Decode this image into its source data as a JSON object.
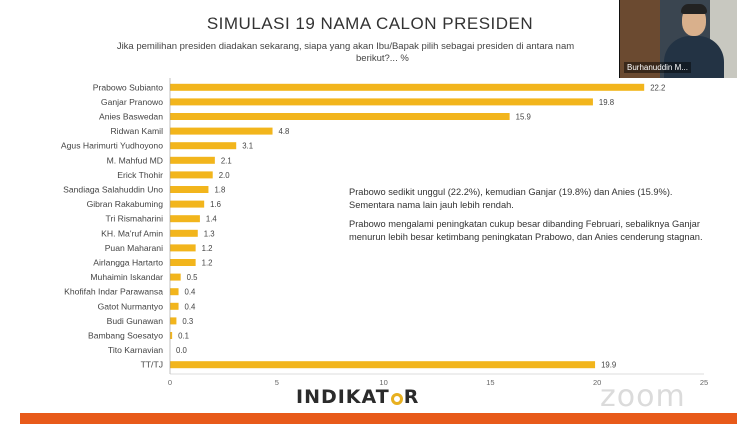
{
  "slide": {
    "title": "SIMULASI 19 NAMA CALON PRESIDEN",
    "subtitle_line1": "Jika pemilihan presiden diadakan sekarang, siapa yang akan Ibu/Bapak pilih sebagai presiden di antara nam",
    "subtitle_line2": "berikut?... %",
    "note_1": "Prabowo sedikit unggul (22.2%), kemudian Ganjar (19.8%) dan Anies (15.9%). Sementara nama lain jauh lebih rendah.",
    "note_2": "Prabowo mengalami peningkatan cukup besar dibanding Februari, sebaliknya Ganjar menurun lebih besar ketimbang peningkatan Prabowo, dan Anies cenderung stagnan.",
    "logo_pre": "INDIKAT",
    "logo_post": "R",
    "watermark": "zoom"
  },
  "video": {
    "participant_name": "Burhanuddin M..."
  },
  "colors": {
    "bar": "#f2b51c",
    "accent_bar": "#e85a1a"
  },
  "chart_data": {
    "type": "bar",
    "orientation": "horizontal",
    "categories": [
      "Prabowo Subianto",
      "Ganjar Pranowo",
      "Anies Baswedan",
      "Ridwan Kamil",
      "Agus Harimurti Yudhoyono",
      "M. Mahfud MD",
      "Erick Thohir",
      "Sandiaga Salahuddin Uno",
      "Gibran Rakabuming",
      "Tri Rismaharini",
      "KH. Ma'ruf Amin",
      "Puan Maharani",
      "Airlangga Hartarto",
      "Muhaimin Iskandar",
      "Khofifah Indar Parawansa",
      "Gatot Nurmantyo",
      "Budi Gunawan",
      "Bambang Soesatyo",
      "Tito Karnavian",
      "TT/TJ"
    ],
    "values": [
      22.2,
      19.8,
      15.9,
      4.8,
      3.1,
      2.1,
      2.0,
      1.8,
      1.6,
      1.4,
      1.3,
      1.2,
      1.2,
      0.5,
      0.4,
      0.4,
      0.3,
      0.1,
      0.0,
      19.9
    ],
    "value_labels": [
      "22.2",
      "19.8",
      "15.9",
      "4.8",
      "3.1",
      "2.1",
      "2.0",
      "1.8",
      "1.6",
      "1.4",
      "1.3",
      "1.2",
      "1.2",
      "0.5",
      "0.4",
      "0.4",
      "0.3",
      "0.1",
      "0.0",
      "19.9"
    ],
    "x_ticks": [
      0,
      5,
      10,
      15,
      20,
      25
    ],
    "xlim": [
      0,
      25
    ],
    "grid": false
  }
}
